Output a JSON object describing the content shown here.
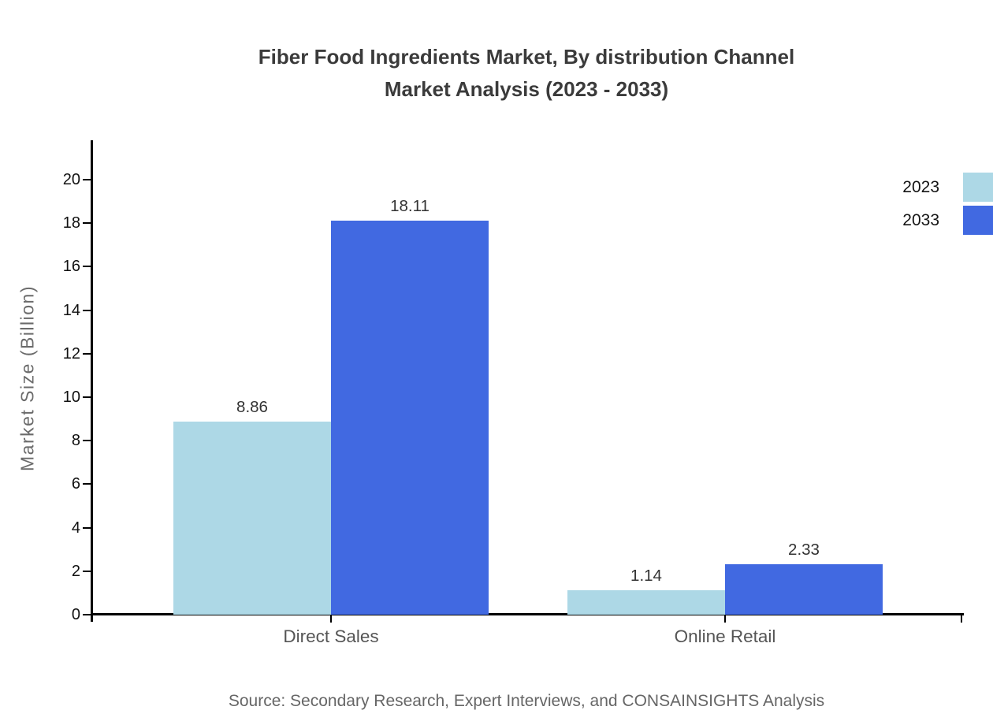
{
  "title": {
    "line1": "Fiber Food Ingredients Market, By distribution Channel",
    "line2": "Market Analysis (2023 - 2033)"
  },
  "chart_data": {
    "type": "bar",
    "title": "Fiber Food Ingredients Market, By distribution Channel Market Analysis (2023 - 2033)",
    "categories": [
      "Direct Sales",
      "Online Retail"
    ],
    "series": [
      {
        "name": "2023",
        "color": "#ADD8E6",
        "values": [
          8.86,
          1.14
        ]
      },
      {
        "name": "2033",
        "color": "#4169E1",
        "values": [
          18.11,
          2.33
        ]
      }
    ],
    "xlabel": "",
    "ylabel": "Market Size (Billion)",
    "ylim": [
      0,
      20
    ],
    "ytick_step": 2,
    "grid": false,
    "legend_position": "top-right",
    "value_label_format": "2dp"
  },
  "source": "Source: Secondary Research, Expert Interviews, and CONSAINSIGHTS Analysis",
  "colors": {
    "series_2023": "#ADD8E6",
    "series_2033": "#4169E1",
    "axis": "#000000",
    "title_text": "#3B3B3B",
    "value_text": "#333333",
    "tick_text": "#111111",
    "category_text": "#555555",
    "ylabel_text": "#6B6B6B",
    "source_text": "#666666",
    "background": "#FFFFFF"
  }
}
